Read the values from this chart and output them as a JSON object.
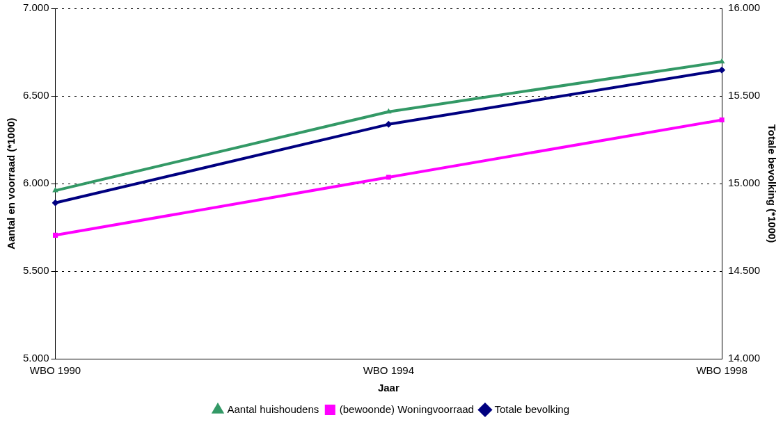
{
  "chart_data": {
    "type": "line",
    "xlabel": "Jaar",
    "ylabel": "Aantal en voorraad (*1000)",
    "y2label": "Totale bevolking (*1000)",
    "categories": [
      "WBO 1990",
      "WBO 1994",
      "WBO 1998"
    ],
    "series": [
      {
        "name": "Aantal huishoudens",
        "color": "#339966",
        "marker": "triangle",
        "values": [
          5960,
          6410,
          6695
        ]
      },
      {
        "name": "(bewoonde) Woningvoorraad",
        "color": "#ff00ff",
        "marker": "square",
        "values": [
          5705,
          6036,
          6363
        ]
      },
      {
        "name": "Totale bevolking",
        "color": "#000080",
        "marker": "diamond",
        "axis": "y2",
        "values": [
          14890,
          15338,
          15648
        ]
      }
    ],
    "ylim": [
      5000,
      7000
    ],
    "yticks": [
      {
        "value": 5000,
        "label": "5.000"
      },
      {
        "value": 5500,
        "label": "5.500"
      },
      {
        "value": 6000,
        "label": "6.000"
      },
      {
        "value": 6500,
        "label": "6.500"
      },
      {
        "value": 7000,
        "label": "7.000"
      }
    ],
    "y2lim": [
      14000,
      16000
    ],
    "y2ticks": [
      {
        "value": 14000,
        "label": "14.000"
      },
      {
        "value": 14500,
        "label": "14.500"
      },
      {
        "value": 15000,
        "label": "15.000"
      },
      {
        "value": 15500,
        "label": "15.500"
      },
      {
        "value": 16000,
        "label": "16.000"
      }
    ],
    "grid": "y",
    "legend": "bottom"
  }
}
